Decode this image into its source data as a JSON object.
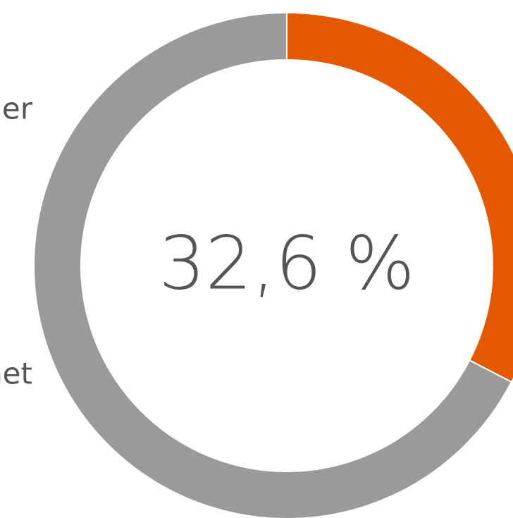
{
  "chart_data": {
    "type": "donut",
    "categories": [
      "er",
      "net"
    ],
    "values": [
      32.6,
      67.4
    ],
    "value_labels": [
      "32,6 %",
      null
    ],
    "colors": [
      "#e35800",
      "#9a9a9a"
    ]
  }
}
